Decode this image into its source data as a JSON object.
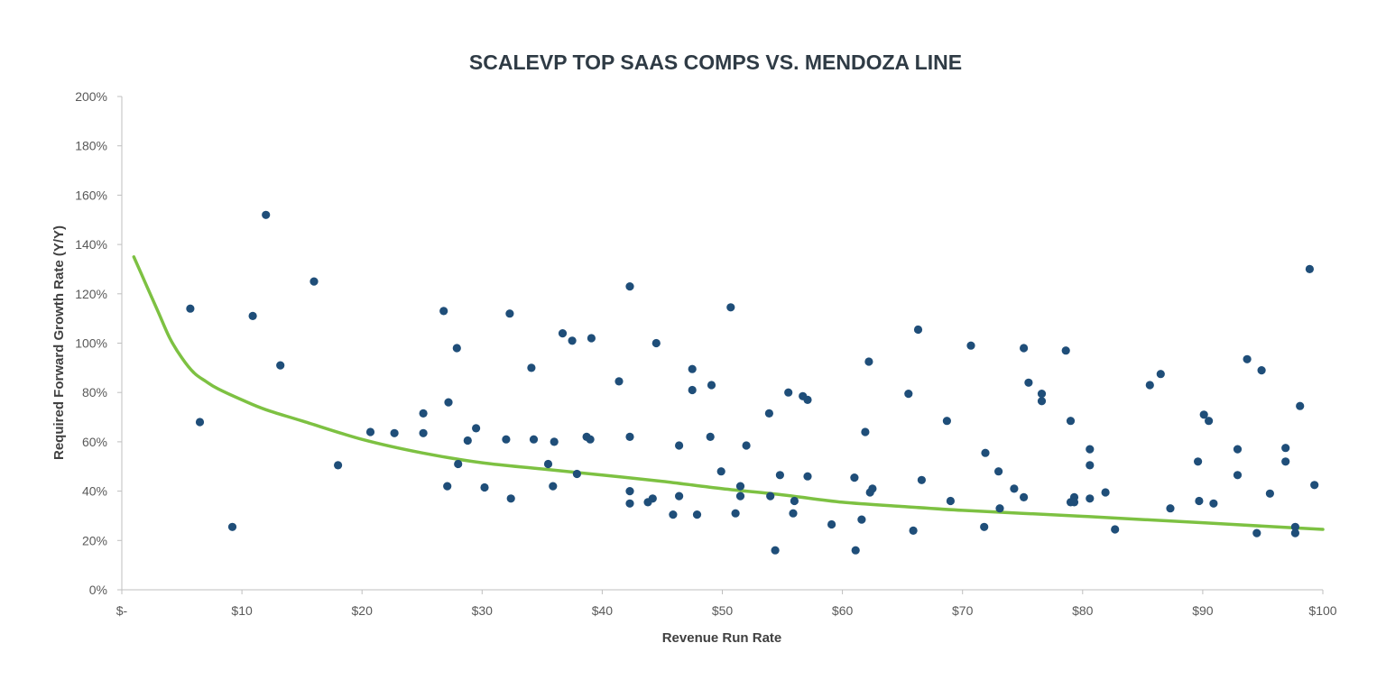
{
  "chart_data": {
    "type": "scatter",
    "title": "SCALEVP TOP SAAS COMPS VS. MENDOZA LINE",
    "xlabel": "Revenue Run Rate",
    "ylabel": "Required Forward Growth Rate (Y/Y)",
    "xlim": [
      0,
      100
    ],
    "ylim": [
      0,
      200
    ],
    "x_ticks": [
      0,
      10,
      20,
      30,
      40,
      50,
      60,
      70,
      80,
      90,
      100
    ],
    "x_tick_labels": [
      "$-",
      "$10",
      "$20",
      "$30",
      "$40",
      "$50",
      "$60",
      "$70",
      "$80",
      "$90",
      "$100"
    ],
    "y_ticks": [
      0,
      20,
      40,
      60,
      80,
      100,
      120,
      140,
      160,
      180,
      200
    ],
    "y_tick_labels": [
      "0%",
      "20%",
      "40%",
      "60%",
      "80%",
      "100%",
      "120%",
      "140%",
      "160%",
      "180%",
      "200%"
    ],
    "grid": false,
    "legend": "none",
    "colors": {
      "points": "#1f4e79",
      "line": "#7dc142",
      "axis": "#bfbfbf"
    },
    "series": [
      {
        "kind": "points",
        "x": [
          5.7,
          6.5,
          9.2,
          10.9,
          12,
          13.2,
          16,
          18,
          20.7,
          22.7,
          25.1,
          25.1,
          26.8,
          27.1,
          27.2,
          27.9,
          28,
          28.8,
          29.5,
          30.2,
          32,
          32.3,
          32.4,
          34.1,
          34.3,
          35.5,
          35.9,
          36,
          36.7,
          37.5,
          37.9,
          38.7,
          39,
          39.1,
          41.4,
          42.3,
          42.3,
          42.3,
          42.3,
          43.8,
          44.2,
          44.5,
          45.9,
          46.4,
          46.4,
          47.5,
          47.5,
          47.9,
          49,
          49.1,
          49.9,
          50.7,
          51.1,
          51.5,
          51.5,
          52,
          53.9,
          54,
          54.4,
          54.8,
          55.5,
          55.9,
          56,
          56.7,
          57.1,
          57.1,
          59.1,
          61,
          61.1,
          61.6,
          61.9,
          62.2,
          62.3,
          62.5,
          65.5,
          65.9,
          66.3,
          66.6,
          68.7,
          69,
          70.7,
          71.8,
          71.9,
          73,
          73.1,
          74.3,
          75.1,
          75.1,
          75.5,
          76.6,
          76.6,
          78.6,
          79,
          79,
          79.3,
          79.3,
          80.6,
          80.6,
          80.6,
          81.9,
          82.7,
          85.6,
          86.5,
          87.3,
          89.6,
          89.7,
          90.1,
          90.5,
          90.9,
          92.9,
          92.9,
          93.7,
          94.5,
          94.9,
          95.6,
          96.9,
          96.9,
          97.7,
          97.7,
          98.1,
          98.9,
          99.3
        ],
        "y": [
          114,
          68,
          25.5,
          111,
          152,
          91,
          125,
          50.5,
          64,
          63.5,
          71.5,
          63.5,
          113,
          42,
          76,
          98,
          51,
          60.5,
          65.5,
          41.5,
          61,
          112,
          37,
          90,
          61,
          51,
          42,
          60,
          104,
          101,
          47,
          62,
          61,
          102,
          84.5,
          123,
          62,
          40,
          35,
          35.5,
          37,
          100,
          30.5,
          58.5,
          38,
          81,
          89.5,
          30.5,
          62,
          83,
          48,
          114.5,
          31,
          42,
          38,
          58.5,
          71.5,
          38,
          16,
          46.5,
          80,
          31,
          36,
          78.5,
          77,
          46,
          26.5,
          45.5,
          16,
          28.5,
          64,
          92.5,
          39.5,
          41,
          79.5,
          24,
          105.5,
          44.5,
          68.5,
          36,
          99,
          25.5,
          55.5,
          48,
          33,
          41,
          98,
          37.5,
          84,
          79.5,
          76.5,
          97,
          68.5,
          35.5,
          37.5,
          35.5,
          57,
          50.5,
          37,
          39.5,
          24.5,
          83,
          87.5,
          33,
          52,
          36,
          71,
          68.5,
          35,
          57,
          46.5,
          93.5,
          23,
          89,
          39,
          57.5,
          52,
          25.5,
          23,
          74.5,
          130,
          42.5
        ]
      },
      {
        "kind": "line",
        "name": "Mendoza Line",
        "x": [
          1,
          2,
          3,
          4,
          5,
          6,
          7,
          8,
          10,
          12,
          15,
          20,
          25,
          30,
          35,
          40,
          45,
          50,
          55,
          60,
          65,
          70,
          75,
          80,
          85,
          90,
          95,
          100
        ],
        "y": [
          135,
          124,
          113,
          102,
          94,
          88,
          84.5,
          81.5,
          77,
          73,
          68.5,
          61,
          55.5,
          51.5,
          49,
          46.5,
          44,
          41,
          38.5,
          35.5,
          33.8,
          32.2,
          31,
          29.8,
          28.5,
          27.2,
          25.8,
          24.5
        ]
      }
    ]
  }
}
